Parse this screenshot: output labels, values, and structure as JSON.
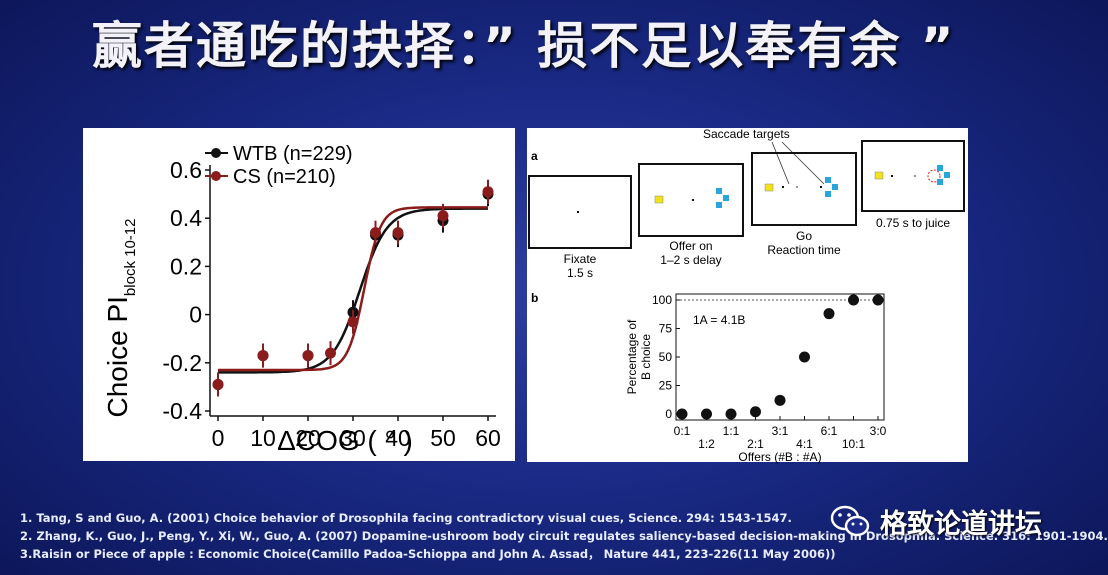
{
  "title": "赢者通吃的抉择：” 损不足以奉有余 ”",
  "chart_data": [
    {
      "type": "scatter",
      "xlabel": "ΔCOG ( ° )",
      "ylabel": "Choice PI",
      "ylabel_sub": "block 10-12",
      "xticks": [
        "0",
        "10",
        "20",
        "30",
        "40",
        "50",
        "60"
      ],
      "yticks": [
        "0.6",
        "0.4",
        "0.2",
        "0",
        "-0.2",
        "-0.4"
      ],
      "xlim": [
        0,
        60
      ],
      "ylim": [
        -0.4,
        0.6
      ],
      "legend_position": "top-left",
      "series": [
        {
          "name": "WTB (n=229)",
          "color": "#111111",
          "fit": "sigmoid",
          "x": [
            0,
            10,
            20,
            30,
            35,
            40,
            50,
            60
          ],
          "y": [
            -0.29,
            -0.17,
            -0.17,
            0.01,
            0.33,
            0.33,
            0.39,
            0.5
          ]
        },
        {
          "name": "CS (n=210)",
          "color": "#8b1c1c",
          "fit": "sigmoid",
          "x": [
            0,
            10,
            20,
            25,
            30,
            35,
            40,
            50,
            60
          ],
          "y": [
            -0.29,
            -0.17,
            -0.17,
            -0.16,
            -0.03,
            0.34,
            0.34,
            0.41,
            0.51
          ]
        }
      ]
    },
    {
      "type": "scatter",
      "panel_a": {
        "label": "a",
        "saccade_label": "Saccade targets",
        "steps": [
          "Fixate\n1.5 s",
          "Offer on\n1–2 s delay",
          "Go\nReaction time",
          "0.75 s to juice"
        ]
      },
      "label": "b",
      "annotation": "1A = 4.1B",
      "ylabel": "Percentage of\nB choice",
      "xlabel": "Offers (#B : #A)",
      "categories": [
        "0:1",
        "1:2",
        "1:1",
        "2:1",
        "3:1",
        "4:1",
        "6:1",
        "10:1",
        "3:0"
      ],
      "y": [
        0,
        0,
        0,
        2,
        12,
        50,
        88,
        100,
        100
      ],
      "yticks": [
        "0",
        "25",
        "50",
        "75",
        "100"
      ],
      "ylim": [
        0,
        100
      ]
    }
  ],
  "references": [
    "1. Tang, S and Guo, A. (2001) Choice behavior of Drosophila facing contradictory visual cues, Science. 294: 1543-1547.",
    "2. Zhang, K., Guo, J.,  Peng, Y., Xi, W., Guo, A. (2007) Dopamine-ushroom body circuit regulates saliency-based decision-making in Drosophila. Science. 316: 1901-1904.",
    "3.Raisin or Piece of apple : Economic Choice(Camillo Padoa-Schioppa and John A. Assad，  Nature 441, 223-226(11 May 2006))"
  ],
  "watermark": "格致论道讲坛",
  "colors": {
    "wtb": "#111111",
    "cs": "#8b1c1c",
    "target_blue": "#2aa6dc",
    "target_yellow": "#f2e21a"
  }
}
